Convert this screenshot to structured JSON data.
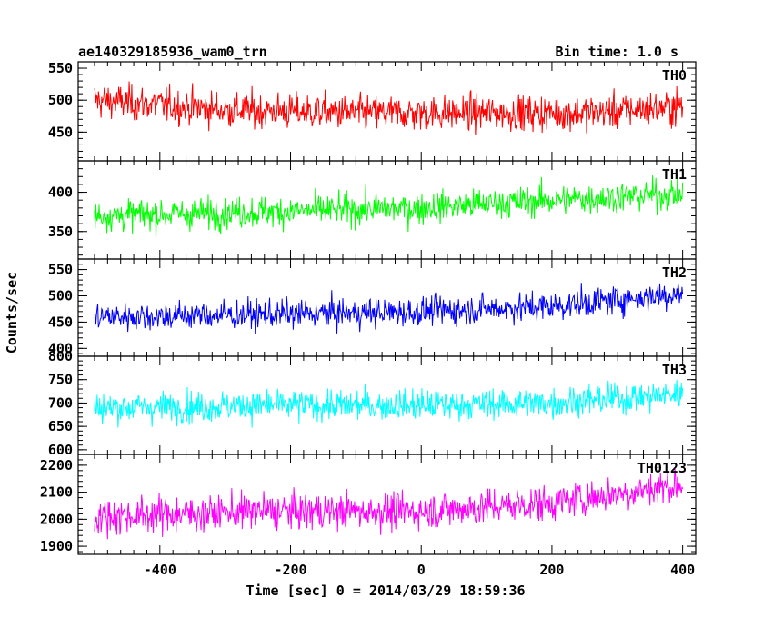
{
  "chart_data": {
    "type": "line",
    "title_left": "ae140329185936_wam0_trn",
    "title_right": "Bin time: 1.0 s",
    "xlabel": "Time [sec] 0 = 2014/03/29 18:59:36",
    "ylabel": "Counts/sec",
    "xlim": [
      -525,
      420
    ],
    "xticks": [
      -400,
      -200,
      0,
      200,
      400
    ],
    "x_start": -500,
    "x_end": 400,
    "x_step": 1,
    "panels": [
      {
        "name": "TH0",
        "color": "#ff0000",
        "ylim": [
          405,
          560
        ],
        "yticks": [
          450,
          500,
          550
        ],
        "baseline": [
          [
            -500,
            500
          ],
          [
            -300,
            485
          ],
          [
            -100,
            480
          ],
          [
            100,
            480
          ],
          [
            250,
            480
          ],
          [
            400,
            490
          ]
        ],
        "spread": 25
      },
      {
        "name": "TH1",
        "color": "#00ff00",
        "ylim": [
          315,
          440
        ],
        "yticks": [
          350,
          400
        ],
        "baseline": [
          [
            -500,
            370
          ],
          [
            -250,
            375
          ],
          [
            0,
            380
          ],
          [
            200,
            390
          ],
          [
            400,
            398
          ]
        ],
        "spread": 18
      },
      {
        "name": "TH2",
        "color": "#0000ff",
        "ylim": [
          385,
          570
        ],
        "yticks": [
          400,
          450,
          500,
          550
        ],
        "baseline": [
          [
            -500,
            460
          ],
          [
            -200,
            465
          ],
          [
            0,
            470
          ],
          [
            200,
            480
          ],
          [
            400,
            505
          ]
        ],
        "spread": 25
      },
      {
        "name": "TH3",
        "color": "#00ffff",
        "ylim": [
          590,
          800
        ],
        "yticks": [
          600,
          650,
          700,
          750,
          800
        ],
        "baseline": [
          [
            -500,
            690
          ],
          [
            -200,
            695
          ],
          [
            0,
            695
          ],
          [
            200,
            700
          ],
          [
            400,
            720
          ]
        ],
        "spread": 30
      },
      {
        "name": "TH0123",
        "color": "#ff00ff",
        "ylim": [
          1870,
          2240
        ],
        "yticks": [
          1900,
          2000,
          2100,
          2200
        ],
        "baseline": [
          [
            -500,
            2010
          ],
          [
            -250,
            2030
          ],
          [
            0,
            2030
          ],
          [
            200,
            2060
          ],
          [
            400,
            2130
          ]
        ],
        "spread": 60
      }
    ]
  }
}
